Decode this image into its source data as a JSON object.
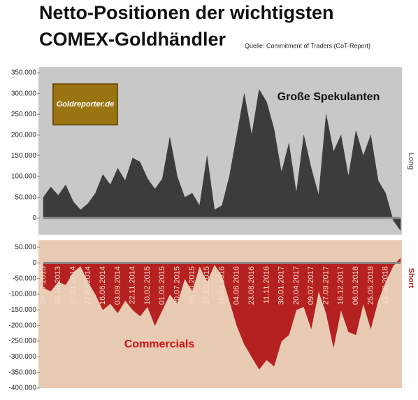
{
  "title": [
    "Netto-Positionen der wichtigsten",
    "COMEX-Goldhändler"
  ],
  "source": "Quelle: Commitment of Traders (CoT-Report)",
  "logo": "Goldreporter.de",
  "chart_data": [
    {
      "type": "area",
      "side_label": "Long",
      "categories": [
        "29.07.2013",
        null,
        "18.10.2013",
        null,
        "07.01.2014",
        null,
        "27.03.2014",
        null,
        "16.06.2014",
        null,
        "03.09.2014",
        null,
        "22.11.2014",
        null,
        "10.02.2015",
        null,
        "01.05.2015",
        null,
        "20.07.2015",
        null,
        "08.10.2015",
        null,
        "27.12.2015",
        null,
        "16.03.2016",
        null,
        "04.06.2016",
        null,
        "23.08.2016",
        null,
        "11.11.2016",
        null,
        "30.01.2017",
        null,
        "20.04.2017",
        null,
        "09.07.2017",
        null,
        "27.09.2017",
        null,
        "16.12.2017",
        null,
        "06.03.2018",
        null,
        "25.05.2018",
        null,
        "13.08.2018",
        null,
        null
      ],
      "series": [
        {
          "name": "Große Spekulanten",
          "color": "#3c3c3c",
          "values": [
            50000,
            75000,
            55000,
            80000,
            40000,
            20000,
            35000,
            60000,
            105000,
            80000,
            120000,
            90000,
            145000,
            135000,
            95000,
            70000,
            95000,
            195000,
            100000,
            50000,
            60000,
            30000,
            150000,
            20000,
            30000,
            100000,
            200000,
            300000,
            200000,
            310000,
            280000,
            215000,
            110000,
            180000,
            60000,
            200000,
            120000,
            55000,
            250000,
            160000,
            200000,
            100000,
            210000,
            150000,
            200000,
            90000,
            60000,
            -5000,
            -30000
          ]
        }
      ],
      "background": "#c8c8c8",
      "ylim": [
        -40000,
        350000
      ],
      "yticks": [
        0,
        {
          "value": 50000,
          "label": "50.000"
        },
        {
          "value": 100000,
          "label": "100.000"
        },
        {
          "value": 150000,
          "label": "150.000"
        },
        {
          "value": 200000,
          "label": "200.000"
        },
        {
          "value": 250000,
          "label": "250.000"
        },
        {
          "value": 300000,
          "label": "300.000"
        },
        {
          "value": 350000,
          "label": "350.000"
        }
      ]
    },
    {
      "type": "area",
      "side_label": "Short",
      "categories": [
        "29.07.2013",
        null,
        "18.10.2013",
        null,
        "07.01.2014",
        null,
        "27.03.2014",
        null,
        "16.06.2014",
        null,
        "03.09.2014",
        null,
        "22.11.2014",
        null,
        "10.02.2015",
        null,
        "01.05.2015",
        null,
        "20.07.2015",
        null,
        "08.10.2015",
        null,
        "27.12.2015",
        null,
        "16.03.2016",
        null,
        "04.06.2016",
        null,
        "23.08.2016",
        null,
        "11.11.2016",
        null,
        "30.01.2017",
        null,
        "20.04.2017",
        null,
        "09.07.2017",
        null,
        "27.09.2017",
        null,
        "16.12.2017",
        null,
        "06.03.2018",
        null,
        "25.05.2018",
        null,
        "13.08.2018",
        null,
        null
      ],
      "series": [
        {
          "name": "Commercials",
          "color": "#b52020",
          "values": [
            -80000,
            -90000,
            -60000,
            -70000,
            -30000,
            -10000,
            -60000,
            -100000,
            -150000,
            -130000,
            -160000,
            -120000,
            -150000,
            -170000,
            -140000,
            -200000,
            -150000,
            -100000,
            -130000,
            -50000,
            -90000,
            -10000,
            -60000,
            -5000,
            -40000,
            -120000,
            -200000,
            -260000,
            -300000,
            -340000,
            -310000,
            -330000,
            -250000,
            -230000,
            -150000,
            -140000,
            -210000,
            -90000,
            -160000,
            -270000,
            -150000,
            -220000,
            -230000,
            -130000,
            -210000,
            -120000,
            -60000,
            -10000,
            15000
          ]
        }
      ],
      "background": "#e9cbb4",
      "ylim": [
        -400000,
        50000
      ],
      "yticks": [
        {
          "value": -400000,
          "label": "-400.000"
        },
        {
          "value": -350000,
          "label": "-350.000"
        },
        {
          "value": -300000,
          "label": "-300.000"
        },
        {
          "value": -250000,
          "label": "-250.000"
        },
        {
          "value": -200000,
          "label": "-200.000"
        },
        {
          "value": -150000,
          "label": "-150.000"
        },
        {
          "value": -100000,
          "label": "-100.000"
        },
        {
          "value": -50000,
          "label": "-50.000"
        },
        0,
        {
          "value": 50000,
          "label": "50.000"
        }
      ]
    }
  ]
}
